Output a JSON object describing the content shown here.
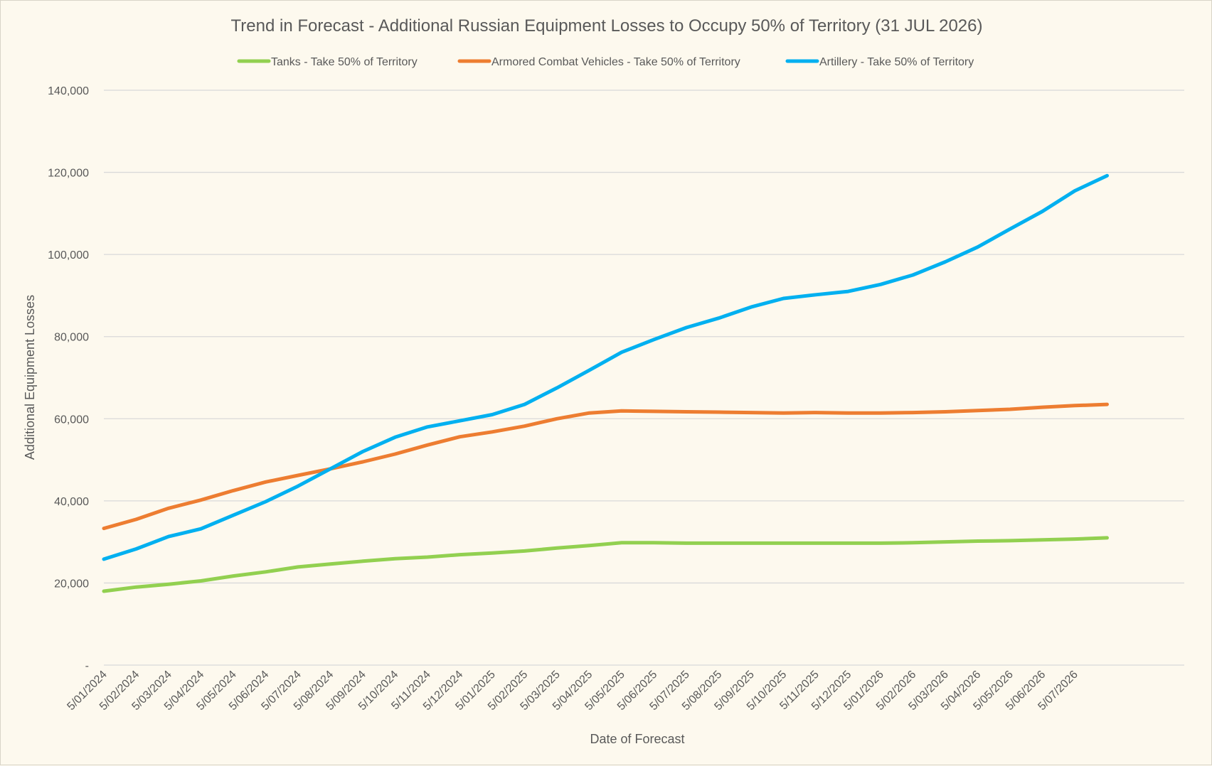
{
  "chart_data": {
    "type": "line",
    "title": "Trend in Forecast - Additional Russian Equipment Losses to Occupy 50% of Territory (31 JUL 2026)",
    "xlabel": "Date of Forecast",
    "ylabel": "Additional Equipment Losses",
    "ylim": [
      0,
      140000
    ],
    "y_ticks": [
      0,
      20000,
      40000,
      60000,
      80000,
      100000,
      120000,
      140000
    ],
    "y_tick_labels": [
      "-",
      "20,000",
      "40,000",
      "60,000",
      "80,000",
      "100,000",
      "120,000",
      "140,000"
    ],
    "x": [
      "5/01/2024",
      "5/02/2024",
      "5/03/2024",
      "5/04/2024",
      "5/05/2024",
      "5/06/2024",
      "5/07/2024",
      "5/08/2024",
      "5/09/2024",
      "5/10/2024",
      "5/11/2024",
      "5/12/2024",
      "5/01/2025",
      "5/02/2025",
      "5/03/2025",
      "5/04/2025",
      "5/05/2025",
      "5/06/2025",
      "5/07/2025",
      "5/08/2025",
      "5/09/2025",
      "5/10/2025",
      "5/11/2025",
      "5/12/2025",
      "5/01/2026",
      "5/02/2026",
      "5/03/2026",
      "5/04/2026",
      "5/05/2026",
      "5/06/2026",
      "5/07/2026",
      "31/07/2026"
    ],
    "x_tick_labels": [
      "5/01/2024",
      "5/02/2024",
      "5/03/2024",
      "5/04/2024",
      "5/05/2024",
      "5/06/2024",
      "5/07/2024",
      "5/08/2024",
      "5/09/2024",
      "5/10/2024",
      "5/11/2024",
      "5/12/2024",
      "5/01/2025",
      "5/02/2025",
      "5/03/2025",
      "5/04/2025",
      "5/05/2025",
      "5/06/2025",
      "5/07/2025",
      "5/08/2025",
      "5/09/2025",
      "5/10/2025",
      "5/11/2025",
      "5/12/2025",
      "5/01/2026",
      "5/02/2026",
      "5/03/2026",
      "5/04/2026",
      "5/05/2026",
      "5/06/2026",
      "5/07/2026"
    ],
    "series": [
      {
        "name": "Tanks - Take 50% of Territory",
        "color": "#92d050",
        "values": [
          18000,
          19000,
          19700,
          20500,
          21700,
          22700,
          23900,
          24600,
          25300,
          25900,
          26300,
          26900,
          27300,
          27800,
          28500,
          29100,
          29800,
          29800,
          29700,
          29700,
          29700,
          29700,
          29700,
          29700,
          29700,
          29800,
          30000,
          30200,
          30300,
          30500,
          30700,
          31000
        ]
      },
      {
        "name": "Armored Combat Vehicles - Take 50% of Territory",
        "color": "#ed7d31",
        "values": [
          33300,
          35500,
          38200,
          40200,
          42500,
          44600,
          46200,
          47800,
          49500,
          51400,
          53600,
          55600,
          56800,
          58200,
          60000,
          61400,
          61900,
          61800,
          61700,
          61600,
          61500,
          61400,
          61500,
          61400,
          61400,
          61500,
          61700,
          62000,
          62300,
          62800,
          63200,
          63500
        ]
      },
      {
        "name": "Artillery - Take 50% of Territory",
        "color": "#00b0f0",
        "values": [
          25800,
          28300,
          31300,
          33200,
          36500,
          39800,
          43600,
          47800,
          52000,
          55500,
          58000,
          59500,
          61000,
          63500,
          67500,
          71800,
          76200,
          79300,
          82200,
          84500,
          87200,
          89300,
          90200,
          91000,
          92700,
          95000,
          98200,
          101800,
          106200,
          110500,
          115500,
          119200
        ]
      }
    ],
    "legend_position": "top",
    "grid": true
  }
}
